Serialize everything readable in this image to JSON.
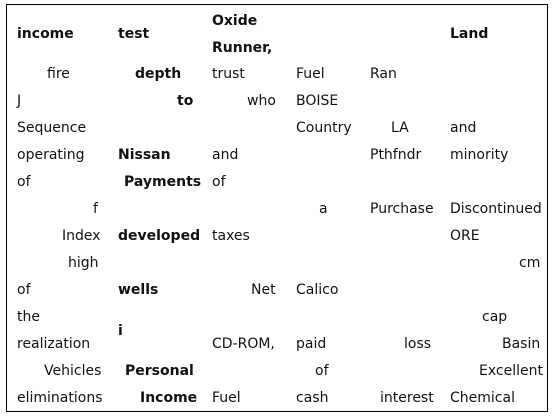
{
  "header": {
    "col1": "income",
    "col2": "test",
    "col3_line1": "Oxide",
    "col3_line2": "Runner,",
    "col6": "Land"
  },
  "rows": [
    [
      "fire",
      "depth",
      "trust",
      "Fuel",
      "Ran",
      ""
    ],
    [
      "J",
      "to",
      "who",
      "BOISE",
      "",
      ""
    ],
    [
      "Sequence",
      "",
      "",
      "Country",
      "LA",
      "and"
    ],
    [
      "operating",
      "Nissan",
      "and",
      "",
      "Pthfndr",
      "minority"
    ],
    [
      "of",
      "Payments",
      "of",
      "",
      "",
      ""
    ],
    [
      "f",
      "",
      "",
      "a",
      "Purchase",
      "Discontinued"
    ],
    [
      "Index",
      "developed",
      "taxes",
      "",
      "",
      "ORE"
    ],
    [
      "high",
      "",
      "",
      "",
      "",
      "cm"
    ],
    [
      "of",
      "wells",
      "Net",
      "Calico",
      "",
      ""
    ],
    [
      "the",
      "",
      "",
      "",
      "",
      "cap"
    ],
    [
      "realization",
      "i",
      "CD-ROM,",
      "paid",
      "loss",
      "Basin"
    ],
    [
      "Vehicles",
      "Personal",
      "",
      "of",
      "",
      "Excellent"
    ],
    [
      "eliminations",
      "Income",
      "Fuel",
      "cash",
      "interest",
      "Chemical"
    ]
  ]
}
